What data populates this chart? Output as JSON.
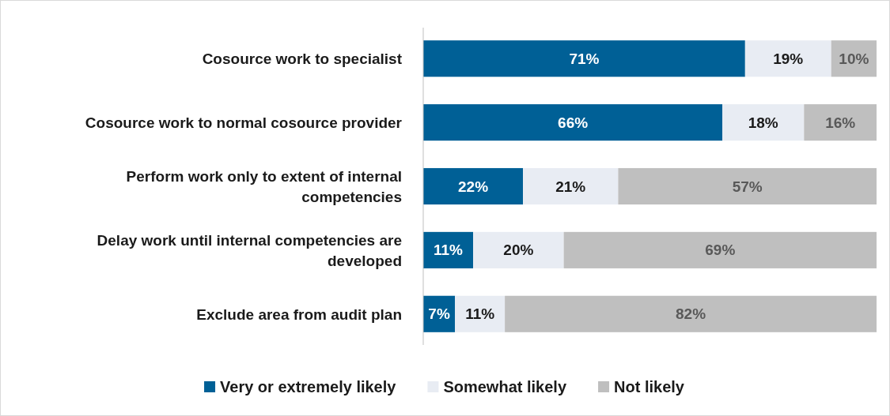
{
  "chart_data": {
    "type": "bar",
    "orientation": "horizontal",
    "stacked": true,
    "legend": "bottom",
    "tick_labels": "y",
    "categories": [
      "Cosource work to specialist",
      "Cosource work to normal cosource provider",
      "Perform work only to extent of internal competencies",
      "Delay work until internal competencies are developed",
      "Exclude area from audit plan"
    ],
    "series": [
      {
        "name": "Very or extremely likely",
        "color": "#006096",
        "values": [
          71,
          66,
          22,
          11,
          7
        ],
        "value_labels": [
          "71%",
          "66%",
          "22%",
          "11%",
          "7%"
        ]
      },
      {
        "name": "Somewhat likely",
        "color": "#e8ecf3",
        "values": [
          19,
          18,
          21,
          20,
          11
        ],
        "value_labels": [
          "19%",
          "18%",
          "21%",
          "20%",
          "11%"
        ]
      },
      {
        "name": "Not likely",
        "color": "#bfbfbf",
        "values": [
          10,
          16,
          57,
          69,
          82
        ],
        "value_labels": [
          "10%",
          "16%",
          "57%",
          "69%",
          "82%"
        ]
      }
    ]
  }
}
